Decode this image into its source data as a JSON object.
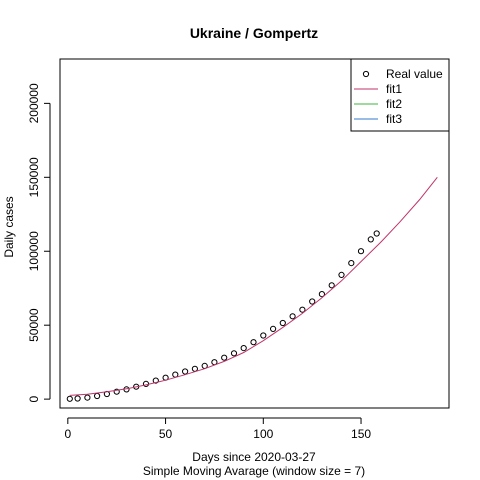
{
  "chart_data": {
    "type": "scatter",
    "title": "Ukraine / Gompertz",
    "xlabel": "Days since 2020-03-27",
    "subtitle": "Simple Moving Avarage (window size = 7)",
    "ylabel": "Daily cases",
    "xlim": [
      -4,
      195
    ],
    "ylim": [
      -6000,
      230000
    ],
    "x_ticks": [
      0,
      50,
      100,
      150
    ],
    "y_ticks": [
      0,
      50000,
      100000,
      150000,
      200000
    ],
    "legend_position": "top-right",
    "legend": [
      {
        "label": "Real value",
        "kind": "point",
        "color": "#000000"
      },
      {
        "label": "fit1",
        "kind": "line",
        "color": "#C0336B"
      },
      {
        "label": "fit2",
        "kind": "line",
        "color": "#3CB33C"
      },
      {
        "label": "fit3",
        "kind": "line",
        "color": "#3378CE"
      }
    ],
    "series": [
      {
        "name": "Real value",
        "style": "open-circles",
        "color": "#000000",
        "points": [
          [
            1,
            200
          ],
          [
            5,
            400
          ],
          [
            10,
            1000
          ],
          [
            15,
            2100
          ],
          [
            20,
            3500
          ],
          [
            25,
            5000
          ],
          [
            30,
            6600
          ],
          [
            35,
            8400
          ],
          [
            40,
            10300
          ],
          [
            45,
            12500
          ],
          [
            50,
            14500
          ],
          [
            55,
            16600
          ],
          [
            60,
            18700
          ],
          [
            65,
            20500
          ],
          [
            70,
            22500
          ],
          [
            75,
            25000
          ],
          [
            80,
            28000
          ],
          [
            85,
            31000
          ],
          [
            90,
            34500
          ],
          [
            95,
            38500
          ],
          [
            100,
            43000
          ],
          [
            105,
            47500
          ],
          [
            110,
            51500
          ],
          [
            115,
            56000
          ],
          [
            120,
            60500
          ],
          [
            125,
            66000
          ],
          [
            130,
            71000
          ],
          [
            135,
            77000
          ],
          [
            140,
            84000
          ],
          [
            145,
            92000
          ],
          [
            150,
            100000
          ],
          [
            155,
            108000
          ],
          [
            158,
            112000
          ]
        ]
      },
      {
        "name": "fit1",
        "style": "line",
        "color": "#C0336B",
        "points": [
          [
            1,
            2500
          ],
          [
            10,
            3300
          ],
          [
            20,
            5000
          ],
          [
            30,
            7000
          ],
          [
            40,
            9600
          ],
          [
            50,
            12800
          ],
          [
            60,
            16500
          ],
          [
            70,
            20600
          ],
          [
            80,
            25500
          ],
          [
            90,
            31500
          ],
          [
            100,
            39500
          ],
          [
            110,
            48500
          ],
          [
            120,
            58000
          ],
          [
            130,
            68500
          ],
          [
            140,
            80000
          ],
          [
            150,
            93000
          ],
          [
            160,
            106000
          ],
          [
            170,
            120000
          ],
          [
            180,
            135000
          ],
          [
            189,
            150000
          ]
        ]
      }
    ]
  }
}
